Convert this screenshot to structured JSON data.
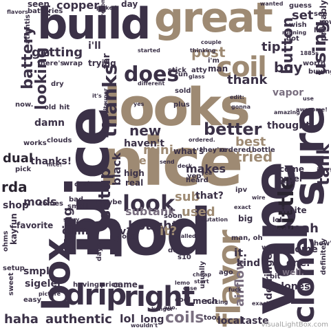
{
  "palette": {
    "dark": "#3b3147",
    "darker": "#2a2431",
    "mid": "#7a6f80",
    "tan": "#9e8a73",
    "light": "#b8a896",
    "pale": "#c9bdb1"
  },
  "watermark": "VisualLightBox.com",
  "words": [
    {
      "text": "looks"
    },
    {
      "text": "nice"
    },
    {
      "text": "mod"
    },
    {
      "text": "juice"
    },
    {
      "text": "vape"
    },
    {
      "text": "build"
    },
    {
      "text": "great"
    },
    {
      "text": "sure"
    },
    {
      "text": "box"
    },
    {
      "text": "right"
    },
    {
      "text": "drip"
    },
    {
      "text": "flavor"
    },
    {
      "text": "clone"
    },
    {
      "text": "coil"
    },
    {
      "text": "does"
    },
    {
      "text": "little"
    },
    {
      "text": "tank"
    },
    {
      "text": "using"
    },
    {
      "text": "look"
    },
    {
      "text": "thanks"
    },
    {
      "text": "setup"
    },
    {
      "text": "looking"
    },
    {
      "text": "battery"
    },
    {
      "text": "better"
    },
    {
      "text": "new"
    },
    {
      "text": "mini"
    },
    {
      "text": "coils"
    },
    {
      "text": "authentic"
    },
    {
      "text": "haha"
    },
    {
      "text": "lol"
    },
    {
      "text": "long"
    },
    {
      "text": "bought"
    },
    {
      "text": "subtank"
    },
    {
      "text": "sub"
    },
    {
      "text": "used"
    },
    {
      "text": "tried"
    },
    {
      "text": "best"
    },
    {
      "text": "post"
    },
    {
      "text": "getting"
    },
    {
      "text": "button"
    },
    {
      "text": "rda"
    },
    {
      "text": "dual"
    },
    {
      "text": "mods"
    },
    {
      "text": "vaping"
    },
    {
      "text": "ohm"
    },
    {
      "text": "shop"
    },
    {
      "text": "black"
    },
    {
      "text": "v2"
    },
    {
      "text": "yeah"
    },
    {
      "text": "tip"
    },
    {
      "text": "buy"
    },
    {
      "text": "set"
    },
    {
      "text": "thank"
    },
    {
      "text": "thought"
    },
    {
      "text": "vapor"
    },
    {
      "text": "thanks!"
    },
    {
      "text": "makes"
    },
    {
      "text": "haven't"
    },
    {
      "text": "ive"
    },
    {
      "text": "high"
    },
    {
      "text": "real"
    },
    {
      "text": "it?"
    },
    {
      "text": "airflow"
    },
    {
      "text": "local"
    },
    {
      "text": "taste"
    },
    {
      "text": "derringer"
    },
    {
      "text": "clones"
    },
    {
      "text": "well."
    },
    {
      "text": "awesome"
    },
    {
      "text": "mod."
    },
    {
      "text": "kind"
    },
    {
      "text": "it."
    },
    {
      "text": "one."
    },
    {
      "text": "white"
    },
    {
      "text": "isn't"
    },
    {
      "text": "come"
    },
    {
      "text": "order"
    },
    {
      "text": "copper"
    },
    {
      "text": "seen"
    },
    {
      "text": "day"
    },
    {
      "text": "far"
    },
    {
      "text": "trying"
    },
    {
      "text": "wrap"
    },
    {
      "text": "batteries"
    },
    {
      "text": "atlantis"
    },
    {
      "text": "there's"
    },
    {
      "text": "damn"
    },
    {
      "text": "clouds"
    },
    {
      "text": "works"
    },
    {
      "text": "favorite"
    },
    {
      "text": "kayfun"
    },
    {
      "text": "sigelei"
    },
    {
      "text": "smpl"
    },
    {
      "text": "setup."
    },
    {
      "text": "having"
    },
    {
      "text": "came"
    },
    {
      "text": "price"
    },
    {
      "text": "sweet"
    },
    {
      "text": "easy"
    },
    {
      "text": "mech"
    },
    {
      "text": "what's"
    },
    {
      "text": "they're"
    },
    {
      "text": "ordered"
    },
    {
      "text": "bottle"
    },
    {
      "text": "man"
    },
    {
      "text": "probably"
    },
    {
      "text": "guess"
    },
    {
      "text": "wanted"
    },
    {
      "text": "worth"
    },
    {
      "text": "buying"
    },
    {
      "text": "amazing"
    },
    {
      "text": "definitely"
    },
    {
      "text": "how's"
    },
    {
      "text": "exactly"
    },
    {
      "text": "that?"
    },
    {
      "text": "different"
    },
    {
      "text": "stick"
    },
    {
      "text": "run"
    },
    {
      "text": "atty"
    },
    {
      "text": "glass"
    },
    {
      "text": "thinking"
    },
    {
      "text": "started"
    },
    {
      "text": "couple"
    },
    {
      "text": "picked"
    },
    {
      "text": "flavors"
    },
    {
      "text": "i'll"
    },
    {
      "text": "i'm"
    },
    {
      "text": "now."
    },
    {
      "text": "dry"
    },
    {
      "text": "old"
    },
    {
      "text": "hit"
    },
    {
      "text": "good."
    },
    {
      "text": "pick"
    },
    {
      "text": "comes"
    },
    {
      "text": "bad"
    },
    {
      "text": "small"
    },
    {
      "text": "dark"
    },
    {
      "text": "maybe"
    },
    {
      "text": "soon"
    },
    {
      "text": "dogo"
    },
    {
      "text": "mutation"
    },
    {
      "text": "big"
    },
    {
      "text": "called"
    },
    {
      "text": "fucking"
    },
    {
      "text": "kanger"
    },
    {
      "text": "too."
    },
    {
      "text": "wouldn't"
    },
    {
      "text": "ohms"
    },
    {
      "text": "picture"
    },
    {
      "text": "super"
    },
    {
      "text": "yes"
    },
    {
      "text": "plus"
    },
    {
      "text": "gonna"
    },
    {
      "text": "edit:"
    },
    {
      "text": "ipv"
    },
    {
      "text": "ago"
    },
    {
      "text": "wait"
    },
    {
      "text": "cool"
    },
    {
      "text": "bit"
    },
    {
      "text": "lol."
    },
    {
      "text": "yep"
    },
    {
      "text": "days"
    },
    {
      "text": "nice!"
    },
    {
      "text": "sorry"
    },
    {
      "text": "lemo"
    },
    {
      "text": "sold"
    },
    {
      "text": "need"
    },
    {
      "text": "quite"
    },
    {
      "text": "cheap"
    },
    {
      "text": "start"
    },
    {
      "text": "case"
    },
    {
      "text": "deck"
    },
    {
      "text": "send"
    },
    {
      "text": "ago."
    },
    {
      "text": "heard"
    },
    {
      "text": "wire"
    },
    {
      "text": "it!"
    },
    {
      "text": "recommend"
    },
    {
      "text": "running"
    },
    {
      "text": "wish"
    },
    {
      "text": "got"
    },
    {
      "text": "life"
    },
    {
      "text": "now"
    },
    {
      "text": "see"
    },
    {
      "text": "use"
    },
    {
      "text": "awesome!"
    },
    {
      "text": "ordered."
    },
    {
      "text": "s10"
    },
    {
      "text": "usually"
    },
    {
      "text": "man, oh"
    },
    {
      "text": "exact"
    },
    {
      "text": "fuck"
    },
    {
      "text": "1885s"
    },
    {
      "text": "it's"
    },
    {
      "text": "yea"
    }
  ]
}
